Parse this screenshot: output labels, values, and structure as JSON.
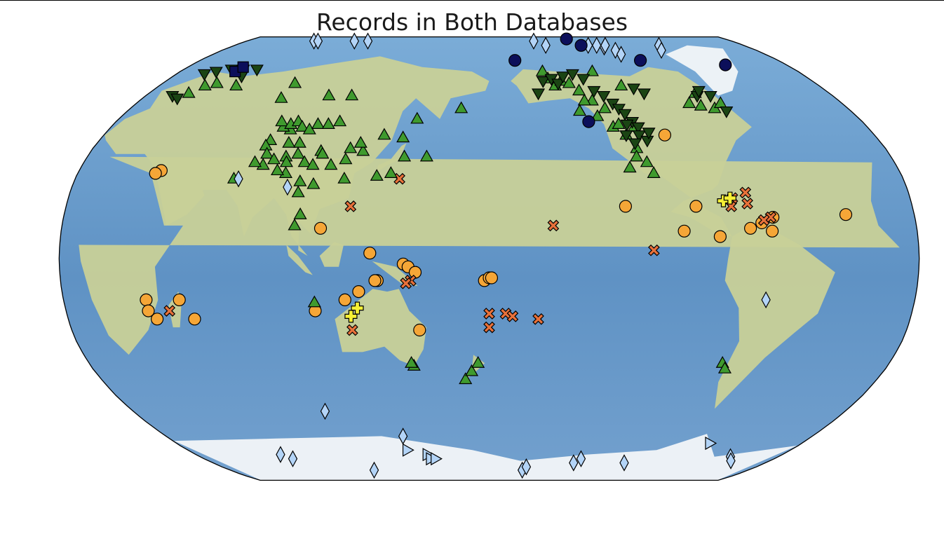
{
  "title": "Records in Both Databases",
  "map": {
    "projection": "robinson",
    "central_longitude": 180,
    "basemap": "natural-earth-shaded-relief"
  },
  "colors": {
    "ocean": "#6fa0cf",
    "land": "#c8d098",
    "ice": "#f2f5f8",
    "marker_edge": "#000000"
  },
  "marker_styles": {
    "circle_orange": {
      "shape": "circle",
      "fill": "#f5a637"
    },
    "cross_orange": {
      "shape": "x-filled",
      "fill": "#e8713a"
    },
    "plus_yellow": {
      "shape": "plus-filled",
      "fill": "#f7f035"
    },
    "triangle_up_green": {
      "shape": "triangle-up",
      "fill": "#3f9a2e"
    },
    "triangle_down_dark": {
      "shape": "triangle-down",
      "fill": "#1b4514"
    },
    "diamond_light": {
      "shape": "thin-diamond",
      "fill": "#b3d4f7"
    },
    "circle_navy": {
      "shape": "circle",
      "fill": "#0c0f5a"
    },
    "square_navy": {
      "shape": "square",
      "fill": "#0c0f5a"
    },
    "triangle_right_light": {
      "shape": "triangle-right",
      "fill": "#b3d4f7"
    }
  },
  "chart_data": {
    "type": "scatter",
    "title": "Records in Both Databases",
    "series": [
      {
        "style": "circle_orange",
        "points": [
          [
            36,
            32
          ],
          [
            34,
            31
          ],
          [
            35,
            -15
          ],
          [
            35,
            -19
          ],
          [
            49,
            -15
          ],
          [
            38,
            -22
          ],
          [
            54,
            -22
          ],
          [
            109,
            11
          ],
          [
            106,
            -19
          ],
          [
            119,
            -15
          ],
          [
            125,
            -12
          ],
          [
            130,
            2
          ],
          [
            133,
            -8
          ],
          [
            132,
            -8
          ],
          [
            144,
            -2
          ],
          [
            146,
            -3
          ],
          [
            149,
            -5
          ],
          [
            178,
            -8
          ],
          [
            180,
            -7
          ],
          [
            181,
            -7
          ],
          [
            150,
            -26
          ],
          [
            238,
            19
          ],
          [
            262,
            10
          ],
          [
            268,
            19
          ],
          [
            277,
            8
          ],
          [
            262,
            45
          ],
          [
            299,
            10
          ],
          [
            290,
            11
          ],
          [
            300,
            15
          ],
          [
            295,
            13
          ],
          [
            331,
            16
          ]
        ]
      },
      {
        "style": "cross_orange",
        "points": [
          [
            44,
            -19
          ],
          [
            121,
            -26
          ],
          [
            121,
            19
          ],
          [
            141,
            29
          ],
          [
            147,
            -8
          ],
          [
            145,
            -9
          ],
          [
            180,
            -20
          ],
          [
            180,
            -25
          ],
          [
            187,
            -20
          ],
          [
            190,
            -21
          ],
          [
            201,
            -22
          ],
          [
            207,
            12
          ],
          [
            249,
            3
          ],
          [
            283,
            19
          ],
          [
            284,
            22
          ],
          [
            290,
            20
          ],
          [
            290,
            24
          ],
          [
            299,
            15
          ],
          [
            296,
            14
          ]
        ]
      },
      {
        "style": "plus_yellow",
        "points": [
          [
            121,
            -21
          ],
          [
            124,
            -18
          ],
          [
            280,
            21
          ],
          [
            283,
            22
          ]
        ]
      },
      {
        "style": "triangle_up_green",
        "points": [
          [
            25,
            64
          ],
          [
            30,
            65
          ],
          [
            21,
            61
          ],
          [
            42,
            64
          ],
          [
            73,
            65
          ],
          [
            72,
            59
          ],
          [
            96,
            60
          ],
          [
            108,
            60
          ],
          [
            69,
            29
          ],
          [
            89,
            37
          ],
          [
            104,
            39
          ],
          [
            117,
            40
          ],
          [
            123,
            39
          ],
          [
            121,
            42
          ],
          [
            131,
            45
          ],
          [
            140,
            44
          ],
          [
            145,
            51
          ],
          [
            166,
            55
          ],
          [
            152,
            37
          ],
          [
            142,
            37
          ],
          [
            116,
            36
          ],
          [
            137,
            31
          ],
          [
            131,
            30
          ],
          [
            117,
            29
          ],
          [
            104,
            27
          ],
          [
            98,
            24
          ],
          [
            100,
            16
          ],
          [
            98,
            12
          ],
          [
            79,
            43
          ],
          [
            86,
            47
          ],
          [
            82,
            48
          ],
          [
            80,
            50
          ],
          [
            85,
            49
          ],
          [
            88,
            50
          ],
          [
            91,
            48
          ],
          [
            95,
            47
          ],
          [
            98,
            49
          ],
          [
            103,
            49
          ],
          [
            108,
            50
          ],
          [
            93,
            42
          ],
          [
            88,
            42
          ],
          [
            78,
            41
          ],
          [
            80,
            38
          ],
          [
            84,
            36
          ],
          [
            90,
            35
          ],
          [
            94,
            38
          ],
          [
            98,
            35
          ],
          [
            102,
            34
          ],
          [
            105,
            38
          ],
          [
            110,
            34
          ],
          [
            91,
            31
          ],
          [
            87,
            32
          ],
          [
            80,
            34
          ],
          [
            76,
            35
          ],
          [
            98,
            28
          ],
          [
            106,
            -16
          ],
          [
            146,
            -39
          ],
          [
            145,
            -38
          ],
          [
            169,
            -44
          ],
          [
            172,
            -41
          ],
          [
            175,
            -38
          ],
          [
            211,
            70
          ],
          [
            213,
            67
          ],
          [
            216,
            64
          ],
          [
            220,
            66
          ],
          [
            224,
            65
          ],
          [
            228,
            62
          ],
          [
            233,
            58
          ],
          [
            238,
            55
          ],
          [
            239,
            48
          ],
          [
            244,
            45
          ],
          [
            247,
            40
          ],
          [
            250,
            35
          ],
          [
            252,
            31
          ],
          [
            246,
            37
          ],
          [
            242,
            33
          ],
          [
            289,
            61
          ],
          [
            282,
            57
          ],
          [
            287,
            56
          ],
          [
            293,
            55
          ],
          [
            298,
            57
          ],
          [
            252,
            64
          ],
          [
            240,
            70
          ],
          [
            229,
            58
          ],
          [
            225,
            54
          ],
          [
            233,
            52
          ],
          [
            242,
            49
          ],
          [
            249,
            48
          ],
          [
            285,
            -38
          ],
          [
            287,
            -40
          ]
        ]
      },
      {
        "style": "triangle_down_dark",
        "points": [
          [
            16,
            69
          ],
          [
            21,
            70
          ],
          [
            28,
            71
          ],
          [
            35,
            71
          ],
          [
            39,
            68
          ],
          [
            43,
            71
          ],
          [
            14,
            60
          ],
          [
            18,
            59
          ],
          [
            206,
            61
          ],
          [
            210,
            66
          ],
          [
            215,
            67
          ],
          [
            218,
            65
          ],
          [
            222,
            68
          ],
          [
            228,
            69
          ],
          [
            233,
            67
          ],
          [
            236,
            62
          ],
          [
            240,
            60
          ],
          [
            243,
            57
          ],
          [
            245,
            55
          ],
          [
            247,
            53
          ],
          [
            249,
            50
          ],
          [
            251,
            48
          ],
          [
            246,
            49
          ],
          [
            250,
            45
          ],
          [
            253,
            43
          ],
          [
            255,
            46
          ],
          [
            247,
            42
          ],
          [
            244,
            45
          ],
          [
            289,
            60
          ],
          [
            292,
            62
          ],
          [
            296,
            60
          ],
          [
            298,
            54
          ],
          [
            258,
            63
          ],
          [
            262,
            61
          ]
        ]
      },
      {
        "style": "diamond_light",
        "points": [
          [
            50,
            86
          ],
          [
            53,
            86
          ],
          [
            80,
            86
          ],
          [
            90,
            86
          ],
          [
            213,
            86
          ],
          [
            220,
            83
          ],
          [
            250,
            83
          ],
          [
            256,
            83
          ],
          [
            260,
            82
          ],
          [
            262,
            83
          ],
          [
            265,
            80
          ],
          [
            266,
            78
          ],
          [
            300,
            83
          ],
          [
            296,
            80
          ],
          [
            93,
            26
          ],
          [
            71,
            29
          ],
          [
            97,
            -56
          ],
          [
            52,
            -74
          ],
          [
            56,
            -76
          ],
          [
            132,
            -66
          ],
          [
            100,
            -82
          ],
          [
            235,
            -78
          ],
          [
            238,
            -76
          ],
          [
            268,
            -78
          ],
          [
            203,
            -82
          ],
          [
            205,
            -80
          ],
          [
            330,
            -75
          ],
          [
            335,
            -77
          ],
          [
            297,
            -15
          ]
        ]
      },
      {
        "style": "circle_navy",
        "points": [
          [
            239,
            88
          ],
          [
            245,
            83
          ],
          [
            196,
            75
          ],
          [
            274,
            75
          ],
          [
            323,
            73
          ],
          [
            228,
            50
          ]
        ]
      },
      {
        "style": "square_navy",
        "points": [
          [
            32,
            70
          ],
          [
            33,
            72
          ]
        ]
      },
      {
        "style": "triangle_right_light",
        "points": [
          [
            131,
            -72
          ],
          [
            142,
            -74
          ],
          [
            143,
            -76
          ],
          [
            146,
            -76
          ],
          [
            307,
            -69
          ]
        ]
      }
    ]
  }
}
